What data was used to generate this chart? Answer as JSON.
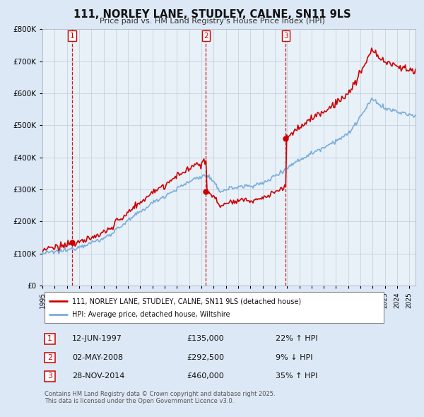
{
  "title": "111, NORLEY LANE, STUDLEY, CALNE, SN11 9LS",
  "subtitle": "Price paid vs. HM Land Registry's House Price Index (HPI)",
  "legend_line1": "111, NORLEY LANE, STUDLEY, CALNE, SN11 9LS (detached house)",
  "legend_line2": "HPI: Average price, detached house, Wiltshire",
  "sales": [
    {
      "num": 1,
      "date": "12-JUN-1997",
      "price": 135000,
      "pct": "22%",
      "dir": "↑",
      "year": 1997.45
    },
    {
      "num": 2,
      "date": "02-MAY-2008",
      "price": 292500,
      "pct": "9%",
      "dir": "↓",
      "year": 2008.37
    },
    {
      "num": 3,
      "date": "28-NOV-2014",
      "price": 460000,
      "pct": "35%",
      "dir": "↑",
      "year": 2014.9
    }
  ],
  "footer_line1": "Contains HM Land Registry data © Crown copyright and database right 2025.",
  "footer_line2": "This data is licensed under the Open Government Licence v3.0.",
  "red_color": "#cc0000",
  "blue_color": "#7aaddb",
  "bg_color": "#dce8f5",
  "plot_bg": "#e8f0f8",
  "ylim": [
    0,
    800000
  ],
  "xlim_start": 1995.0,
  "xlim_end": 2025.5
}
